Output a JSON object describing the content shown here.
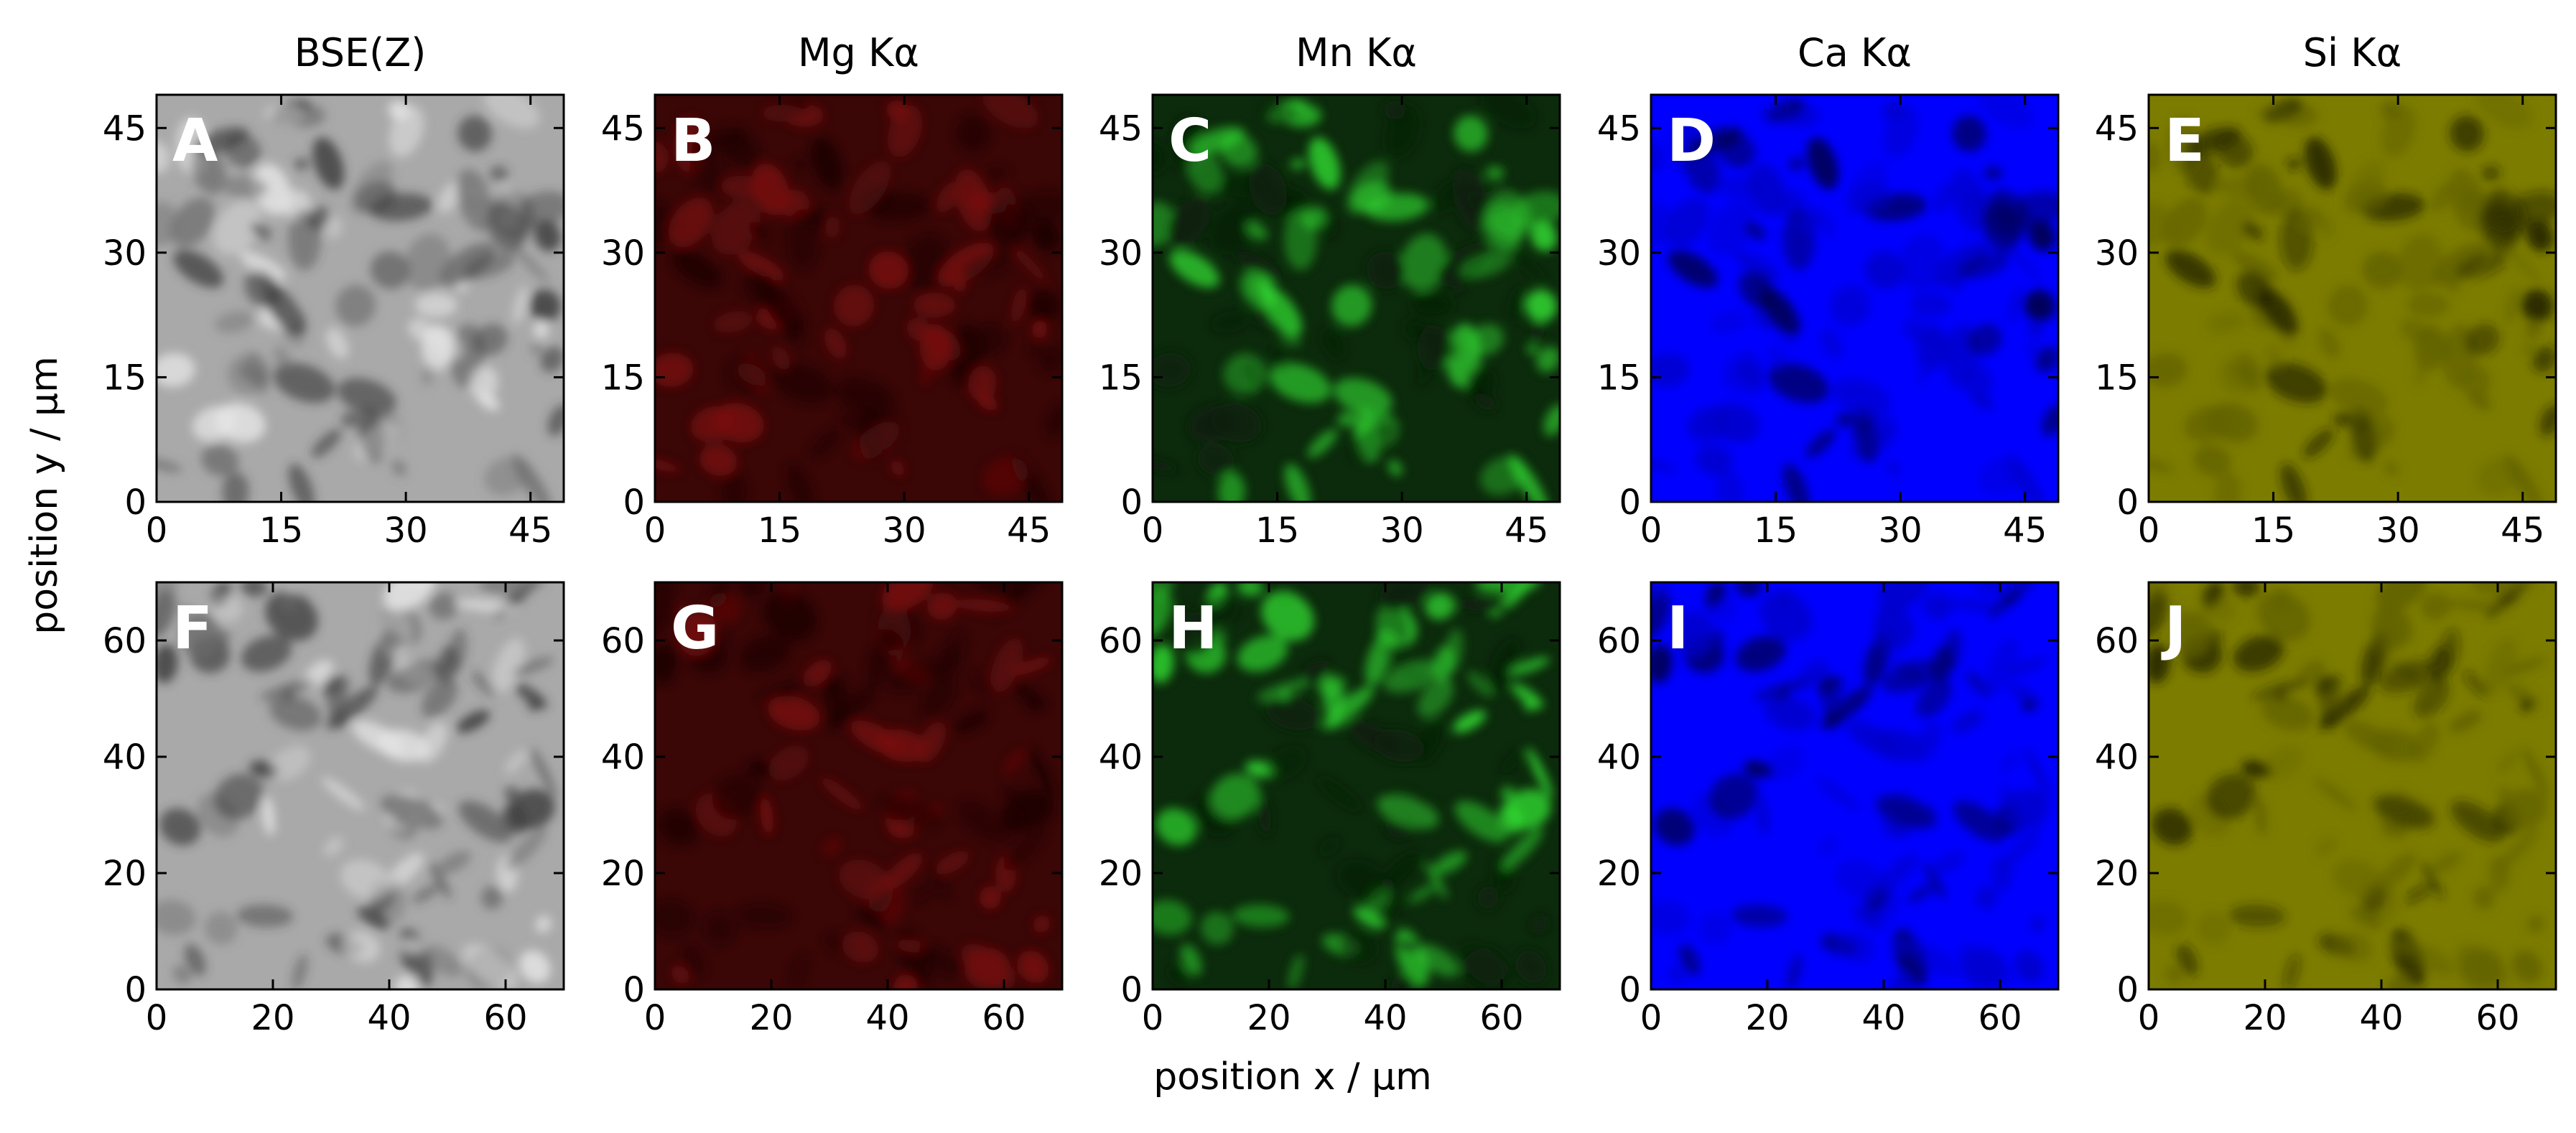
{
  "chart_data": {
    "type": "heatmap",
    "xlabel": "position x / µm",
    "ylabel": "position y / µm",
    "columns": [
      "BSE(Z)",
      "Mg Kα",
      "Mn Kα",
      "Ca Kα",
      "Si Kα"
    ],
    "colors": [
      "#8c8c8c",
      "#d01010",
      "#20e020",
      "#0000ff",
      "#7c7c00"
    ],
    "panels": [
      {
        "letter": "A",
        "row": 0,
        "col": 0,
        "channel": "BSE(Z)",
        "xlim": [
          0,
          49
        ],
        "ylim": [
          0,
          49
        ],
        "xticks": [
          0,
          15,
          30,
          45
        ],
        "yticks": [
          0,
          15,
          30,
          45
        ]
      },
      {
        "letter": "B",
        "row": 0,
        "col": 1,
        "channel": "Mg Kα",
        "xlim": [
          0,
          49
        ],
        "ylim": [
          0,
          49
        ],
        "xticks": [
          0,
          15,
          30,
          45
        ],
        "yticks": [
          0,
          15,
          30,
          45
        ]
      },
      {
        "letter": "C",
        "row": 0,
        "col": 2,
        "channel": "Mn Kα",
        "xlim": [
          0,
          49
        ],
        "ylim": [
          0,
          49
        ],
        "xticks": [
          0,
          15,
          30,
          45
        ],
        "yticks": [
          0,
          15,
          30,
          45
        ]
      },
      {
        "letter": "D",
        "row": 0,
        "col": 3,
        "channel": "Ca Kα",
        "xlim": [
          0,
          49
        ],
        "ylim": [
          0,
          49
        ],
        "xticks": [
          0,
          15,
          30,
          45
        ],
        "yticks": [
          0,
          15,
          30,
          45
        ]
      },
      {
        "letter": "E",
        "row": 0,
        "col": 4,
        "channel": "Si Kα",
        "xlim": [
          0,
          49
        ],
        "ylim": [
          0,
          49
        ],
        "xticks": [
          0,
          15,
          30,
          45
        ],
        "yticks": [
          0,
          15,
          30,
          45
        ]
      },
      {
        "letter": "F",
        "row": 1,
        "col": 0,
        "channel": "BSE(Z)",
        "xlim": [
          0,
          70
        ],
        "ylim": [
          0,
          70
        ],
        "xticks": [
          0,
          20,
          40,
          60
        ],
        "yticks": [
          0,
          20,
          40,
          60
        ]
      },
      {
        "letter": "G",
        "row": 1,
        "col": 1,
        "channel": "Mg Kα",
        "xlim": [
          0,
          70
        ],
        "ylim": [
          0,
          70
        ],
        "xticks": [
          0,
          20,
          40,
          60
        ],
        "yticks": [
          0,
          20,
          40,
          60
        ]
      },
      {
        "letter": "H",
        "row": 1,
        "col": 2,
        "channel": "Mn Kα",
        "xlim": [
          0,
          70
        ],
        "ylim": [
          0,
          70
        ],
        "xticks": [
          0,
          20,
          40,
          60
        ],
        "yticks": [
          0,
          20,
          40,
          60
        ]
      },
      {
        "letter": "I",
        "row": 1,
        "col": 3,
        "channel": "Ca Kα",
        "xlim": [
          0,
          70
        ],
        "ylim": [
          0,
          70
        ],
        "xticks": [
          0,
          20,
          40,
          60
        ],
        "yticks": [
          0,
          20,
          40,
          60
        ]
      },
      {
        "letter": "J",
        "row": 1,
        "col": 4,
        "channel": "Si Kα",
        "xlim": [
          0,
          70
        ],
        "ylim": [
          0,
          70
        ],
        "xticks": [
          0,
          20,
          40,
          60
        ],
        "yticks": [
          0,
          20,
          40,
          60
        ]
      }
    ]
  }
}
